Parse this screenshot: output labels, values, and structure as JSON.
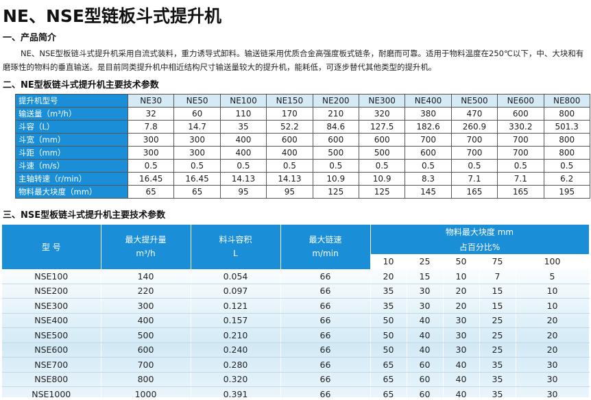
{
  "title": "NE、NSE型链板斗式提升机",
  "section1": {
    "heading": "一、产品简介",
    "text": "NE、NSE型板链斗式提升机采用自流式装料，重力诱导式卸料。输送链采用优质合金高强度板式链条，耐磨而可靠。适用于物料温度在250℃以下，中、大块和有磨琢性的物料的垂直输送。是目前同类提升机中相近结构尺寸输送量较大的提升机，能耗低，可逐步替代其他类型的提升机。"
  },
  "section2": {
    "heading": "二、NE型板链斗式提升机主要技术参数"
  },
  "table1": {
    "header_label": "提升机型号",
    "models": [
      "NE30",
      "NE50",
      "NE100",
      "NE150",
      "NE200",
      "NE300",
      "NE400",
      "NE500",
      "NE600",
      "NE800"
    ],
    "rows": [
      {
        "label": "输送量（m³/h）",
        "values": [
          "32",
          "60",
          "110",
          "170",
          "210",
          "320",
          "380",
          "470",
          "600",
          "800"
        ]
      },
      {
        "label": "斗容（L）",
        "values": [
          "7.8",
          "14.7",
          "35",
          "52.2",
          "84.6",
          "127.5",
          "182.6",
          "260.9",
          "330.2",
          "501.3"
        ]
      },
      {
        "label": "斗宽（mm）",
        "values": [
          "300",
          "300",
          "400",
          "600",
          "600",
          "600",
          "700",
          "700",
          "700",
          "800"
        ]
      },
      {
        "label": "斗距（mm）",
        "values": [
          "300",
          "300",
          "400",
          "400",
          "500",
          "500",
          "600",
          "700",
          "700",
          "800"
        ]
      },
      {
        "label": "斗速（m/s）",
        "values": [
          "0.5",
          "0.5",
          "0.5",
          "0.5",
          "0.5",
          "0.5",
          "0.5",
          "0.5",
          "0.5",
          "0.5"
        ]
      },
      {
        "label": "主轴转速（r/min）",
        "values": [
          "16.45",
          "16.45",
          "14.13",
          "14.13",
          "10.9",
          "10.9",
          "8.3",
          "7.1",
          "7.1",
          "6.2"
        ]
      },
      {
        "label": "物料最大块度（mm）",
        "values": [
          "65",
          "65",
          "95",
          "95",
          "125",
          "125",
          "145",
          "165",
          "165",
          "195"
        ]
      }
    ]
  },
  "section3": {
    "heading": "三、NSE型板链斗式提升机主要技术参数"
  },
  "table2": {
    "col_model": "型  号",
    "col_capacity": "最大提升量",
    "col_capacity_unit": "m³/h",
    "col_volume": "料斗容积",
    "col_volume_unit": "L",
    "col_speed": "最大链速",
    "col_speed_unit": "m/min",
    "col_lump": "物料最大块度 mm",
    "col_pct": "占百分比%",
    "pcts": [
      "10",
      "25",
      "50",
      "75",
      "100"
    ],
    "rows": [
      {
        "model": "NSE100",
        "capacity": "140",
        "volume": "0.054",
        "speed": "66",
        "lump": [
          "20",
          "15",
          "10",
          "7",
          "5"
        ]
      },
      {
        "model": "NSE200",
        "capacity": "220",
        "volume": "0.097",
        "speed": "66",
        "lump": [
          "35",
          "30",
          "20",
          "15",
          "10"
        ]
      },
      {
        "model": "NSE300",
        "capacity": "300",
        "volume": "0.121",
        "speed": "66",
        "lump": [
          "35",
          "30",
          "20",
          "15",
          "10"
        ]
      },
      {
        "model": "NSE400",
        "capacity": "400",
        "volume": "0.157",
        "speed": "66",
        "lump": [
          "50",
          "40",
          "30",
          "25",
          "20"
        ]
      },
      {
        "model": "NSE500",
        "capacity": "500",
        "volume": "0.210",
        "speed": "66",
        "lump": [
          "50",
          "40",
          "30",
          "25",
          "20"
        ]
      },
      {
        "model": "NSE600",
        "capacity": "600",
        "volume": "0.240",
        "speed": "66",
        "lump": [
          "50",
          "40",
          "30",
          "25",
          "20"
        ]
      },
      {
        "model": "NSE700",
        "capacity": "700",
        "volume": "0.280",
        "speed": "66",
        "lump": [
          "65",
          "60",
          "40",
          "35",
          "30"
        ]
      },
      {
        "model": "NSE800",
        "capacity": "800",
        "volume": "0.320",
        "speed": "66",
        "lump": [
          "65",
          "60",
          "40",
          "35",
          "30"
        ]
      },
      {
        "model": "NSE1000",
        "capacity": "1000",
        "volume": "0.391",
        "speed": "66",
        "lump": [
          "65",
          "60",
          "40",
          "35",
          "30"
        ]
      }
    ]
  }
}
